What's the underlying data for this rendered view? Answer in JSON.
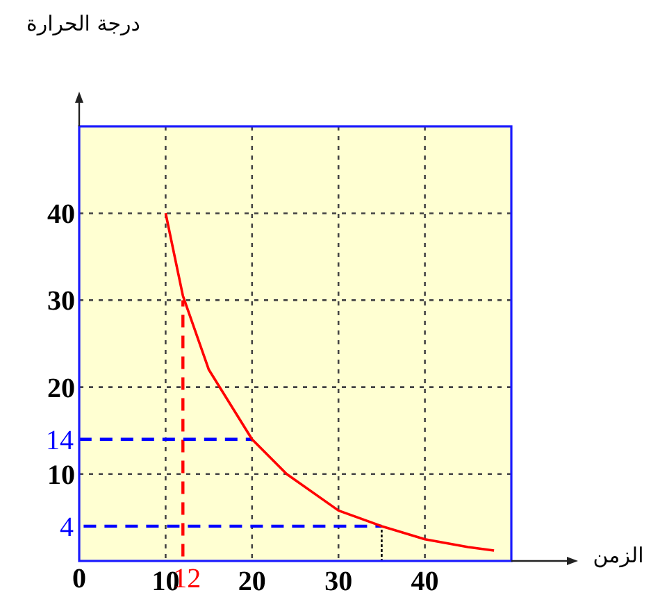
{
  "chart_data": {
    "type": "line",
    "xlabel": "الزمن",
    "ylabel": "درجة الحرارة",
    "xlim": [
      0,
      50
    ],
    "ylim": [
      0,
      50
    ],
    "xticks": [
      0,
      10,
      {
        "value": 12,
        "label": "12"
      },
      20,
      30,
      40
    ],
    "yticks": [
      {
        "value": 4,
        "label": "4"
      },
      10,
      {
        "value": 14,
        "label": "14"
      },
      20,
      30,
      40
    ],
    "grid": true,
    "series": [
      {
        "color": "#ff0000",
        "line_style": "solid",
        "x": [
          10,
          12,
          15,
          20,
          24,
          30,
          35,
          40,
          45,
          48
        ],
        "values": [
          40,
          30.5,
          22,
          14,
          10,
          5.8,
          4,
          2.5,
          1.6,
          1.2
        ]
      },
      {
        "color": "#0000ff",
        "line_style": "dashed",
        "x": [
          0,
          20
        ],
        "values": [
          14,
          14
        ]
      },
      {
        "color": "#0000ff",
        "line_style": "dashed",
        "x": [
          0,
          35
        ],
        "values": [
          4,
          4
        ]
      },
      {
        "color": "#ff0000",
        "line_style": "dashed",
        "x": [
          12,
          12
        ],
        "values": [
          0,
          30
        ]
      },
      {
        "color": "#000000",
        "line_style": "dotted",
        "x": [
          35,
          35
        ],
        "values": [
          0,
          4
        ]
      }
    ]
  }
}
